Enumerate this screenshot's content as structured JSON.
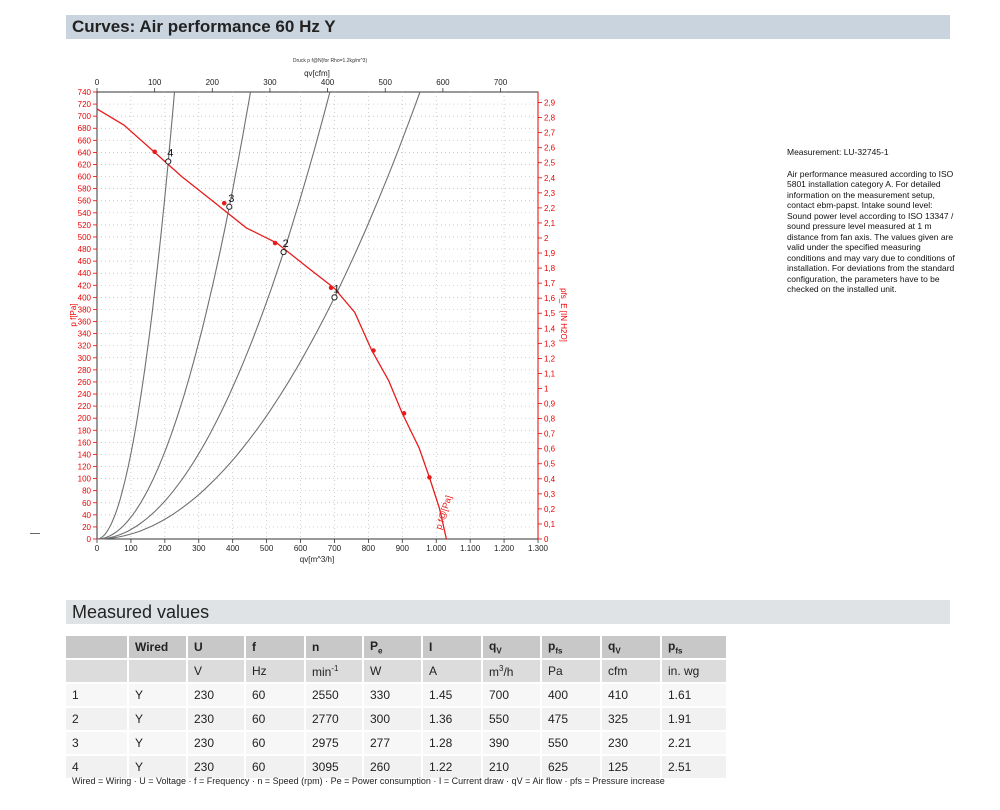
{
  "header": {
    "title": "Curves: Air performance 60 Hz Y"
  },
  "measured_header": {
    "title": "Measured values"
  },
  "info": {
    "measurement": "Measurement: LU-32745-1",
    "text": "Air performance measured according to ISO 5801 installation category A. For detailed information on the measurement setup, contact ebm-papst. Intake sound level: Sound power level according to ISO 13347 / sound pressure level measured at 1 m distance from fan axis. The values given are valid under the specified measuring conditions and may vary due to conditions of installation. For deviations from the standard configuration, the parameters have to be checked on the installed unit."
  },
  "chart_data": {
    "type": "line",
    "title": "Druck p f@N(for Rho=1.2kg/m^3)",
    "xlabel": "qv[m^3/h]",
    "x2label": "qv[cfm]",
    "ylabel": "p f[Pa]",
    "y2label": "pfs_E [IN H2O]",
    "xlim": [
      0,
      1300
    ],
    "ylim": [
      0,
      740
    ],
    "x2lim": [
      0,
      765
    ],
    "y2lim": [
      0,
      2.97
    ],
    "x_ticks": [
      "0",
      "100",
      "200",
      "300",
      "400",
      "500",
      "600",
      "700",
      "800",
      "900",
      "1.000",
      "1.100",
      "1.200",
      "1.300"
    ],
    "x2_ticks": [
      "0",
      "100",
      "200",
      "300",
      "400",
      "500",
      "600",
      "700"
    ],
    "y_ticks": [
      "0",
      "20",
      "40",
      "60",
      "80",
      "100",
      "120",
      "140",
      "160",
      "180",
      "200",
      "220",
      "240",
      "260",
      "280",
      "300",
      "320",
      "340",
      "360",
      "380",
      "400",
      "420",
      "440",
      "460",
      "480",
      "500",
      "520",
      "540",
      "560",
      "580",
      "600",
      "620",
      "640",
      "660",
      "680",
      "700",
      "720",
      "740"
    ],
    "y2_ticks": [
      "0",
      "0,1",
      "0,2",
      "0,3",
      "0,4",
      "0,5",
      "0,6",
      "0,7",
      "0,8",
      "0,9",
      "1",
      "1,1",
      "1,2",
      "1,3",
      "1,4",
      "1,5",
      "1,6",
      "1,7",
      "1,8",
      "1,9",
      "2",
      "2,1",
      "2,2",
      "2,3",
      "2,4",
      "2,5",
      "2,6",
      "2,7",
      "2,8",
      "2,9"
    ],
    "fan_curve": {
      "name": "p f@[Pa]",
      "color": "#e81c1c",
      "points": [
        [
          0,
          712
        ],
        [
          80,
          685
        ],
        [
          170,
          640
        ],
        [
          250,
          600
        ],
        [
          340,
          560
        ],
        [
          440,
          515
        ],
        [
          530,
          490
        ],
        [
          620,
          450
        ],
        [
          700,
          415
        ],
        [
          760,
          375
        ],
        [
          810,
          312
        ],
        [
          860,
          262
        ],
        [
          900,
          208
        ],
        [
          950,
          150
        ],
        [
          980,
          102
        ],
        [
          1010,
          50
        ],
        [
          1030,
          0
        ]
      ],
      "markers": [
        [
          170,
          641
        ],
        [
          375,
          556
        ],
        [
          525,
          490
        ],
        [
          690,
          416
        ],
        [
          815,
          312
        ],
        [
          905,
          208
        ],
        [
          980,
          102
        ]
      ]
    },
    "system_curves": {
      "color": "#707070",
      "lines": [
        {
          "label": "1",
          "x": [
            0,
            100,
            200,
            300,
            400,
            500,
            600,
            700,
            800,
            900,
            1000,
            1100,
            1200
          ],
          "y": [
            0,
            9,
            33,
            74,
            130,
            200,
            290,
            400,
            520,
            660,
            740,
            740,
            740
          ],
          "k": 0.0008163
        },
        {
          "label": "2",
          "x": [
            0,
            550
          ],
          "y": [
            0,
            475
          ],
          "k": 0.0015702
        },
        {
          "label": "3",
          "x": [
            0,
            390
          ],
          "y": [
            0,
            550
          ],
          "k": 0.0036161
        },
        {
          "label": "4",
          "x": [
            0,
            210
          ],
          "y": [
            0,
            625
          ],
          "k": 0.014172
        }
      ]
    },
    "operating_points": [
      {
        "label": "1",
        "x": 700,
        "y": 400
      },
      {
        "label": "2",
        "x": 550,
        "y": 475
      },
      {
        "label": "3",
        "x": 390,
        "y": 550
      },
      {
        "label": "4",
        "x": 210,
        "y": 625
      }
    ],
    "grid": true
  },
  "table": {
    "headers": [
      "",
      "Wired",
      "U",
      "f",
      "n",
      "P",
      "I",
      "q",
      "p",
      "q",
      "p"
    ],
    "header_subs": [
      "",
      "",
      "",
      "",
      "",
      "e",
      "",
      "V",
      "fs",
      "V",
      "fs"
    ],
    "units": [
      "",
      "",
      "V",
      "Hz",
      "min",
      "W",
      "A",
      "m",
      "Pa",
      "cfm",
      "in. wg"
    ],
    "unit_sups": [
      "",
      "",
      "",
      "",
      "-1",
      "",
      "",
      "3",
      "",
      "",
      ""
    ],
    "unit_tails": [
      "",
      "",
      "",
      "",
      "",
      "",
      "",
      "/h",
      "",
      "",
      ""
    ],
    "rows": [
      [
        "1",
        "Y",
        "230",
        "60",
        "2550",
        "330",
        "1.45",
        "700",
        "400",
        "410",
        "1.61"
      ],
      [
        "2",
        "Y",
        "230",
        "60",
        "2770",
        "300",
        "1.36",
        "550",
        "475",
        "325",
        "1.91"
      ],
      [
        "3",
        "Y",
        "230",
        "60",
        "2975",
        "277",
        "1.28",
        "390",
        "550",
        "230",
        "2.21"
      ],
      [
        "4",
        "Y",
        "230",
        "60",
        "3095",
        "260",
        "1.22",
        "210",
        "625",
        "125",
        "2.51"
      ]
    ]
  },
  "footnote": "Wired = Wiring · U = Voltage · f = Frequency · n = Speed (rpm) · Pe = Power consumption · I = Current draw · qV = Air flow · pfs = Pressure increase"
}
